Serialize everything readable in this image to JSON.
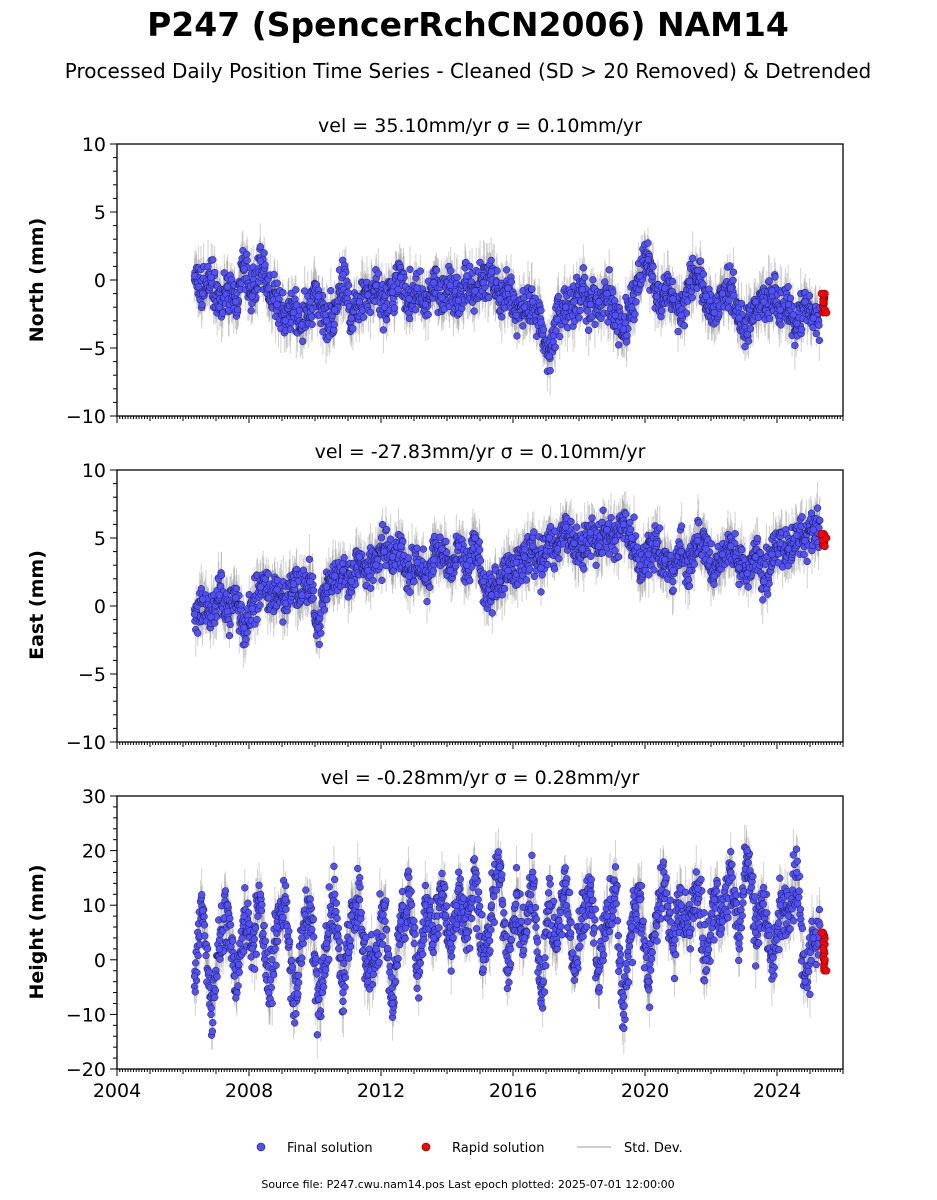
{
  "figure": {
    "title": "P247 (SpencerRchCN2006) NAM14",
    "subtitle": "Processed Daily Position Time Series - Cleaned (SD > 20 Removed) & Detrended",
    "source": "Source file: P247.cwu.nam14.pos  Last epoch plotted: 2025-07-01 12:00:00"
  },
  "legend": {
    "final": "Final solution",
    "rapid": "Rapid solution",
    "std": "Std. Dev."
  },
  "colors": {
    "final_fill": "#5050ff",
    "final_edge": "#1a1a3a",
    "rapid_fill": "#ff0000",
    "rapid_edge": "#600000",
    "errorbar": "#7a7a7a"
  },
  "chart_data": [
    {
      "type": "scatter",
      "title_text": "vel = 35.10mm/yr   σ = 0.10mm/yr",
      "ylabel": "North (mm)",
      "xlim": [
        2004,
        2026
      ],
      "ylim": [
        -10,
        10
      ],
      "yticks": [
        -10,
        -5,
        0,
        5,
        10
      ],
      "yticklabels": [
        "−10",
        "−5",
        "0",
        "5",
        "10"
      ],
      "grid": false,
      "series": [
        {
          "name": "Final solution",
          "x": [
            2006.35,
            2006.6,
            2006.85,
            2007.1,
            2007.35,
            2007.6,
            2007.85,
            2008.1,
            2008.35,
            2008.6,
            2008.85,
            2009.1,
            2009.35,
            2009.6,
            2009.85,
            2010.1,
            2010.35,
            2010.6,
            2010.85,
            2011.1,
            2011.35,
            2011.6,
            2011.85,
            2012.1,
            2012.35,
            2012.6,
            2012.85,
            2013.1,
            2013.35,
            2013.6,
            2013.85,
            2014.1,
            2014.35,
            2014.6,
            2014.85,
            2015.1,
            2015.35,
            2015.6,
            2015.85,
            2016.1,
            2016.35,
            2016.6,
            2016.85,
            2017.1,
            2017.35,
            2017.6,
            2017.85,
            2018.1,
            2018.35,
            2018.6,
            2018.85,
            2019.1,
            2019.35,
            2019.6,
            2019.85,
            2020.1,
            2020.35,
            2020.6,
            2020.85,
            2021.1,
            2021.35,
            2021.6,
            2021.85,
            2022.1,
            2022.35,
            2022.6,
            2022.85,
            2023.1,
            2023.35,
            2023.6,
            2023.85,
            2024.1,
            2024.35,
            2024.6,
            2024.85,
            2025.1
          ],
          "y": [
            0.3,
            -1.0,
            0.2,
            -2.0,
            -0.5,
            -1.6,
            0.8,
            -1.2,
            1.4,
            -0.6,
            -1.8,
            -3.0,
            -2.4,
            -3.3,
            -1.6,
            -1.2,
            -3.0,
            -2.2,
            0.4,
            -2.8,
            -1.6,
            -1.1,
            -0.4,
            -2.0,
            -0.9,
            0.2,
            -1.4,
            -0.6,
            -1.8,
            -0.2,
            -1.3,
            -0.4,
            -1.5,
            0.3,
            -0.8,
            -0.2,
            0.6,
            -1.4,
            -0.6,
            -2.6,
            -2.0,
            -1.6,
            -3.1,
            -5.6,
            -2.9,
            -2.0,
            -1.6,
            -0.7,
            -1.8,
            -1.6,
            -1.0,
            -2.6,
            -3.6,
            -2.0,
            0.3,
            1.5,
            -1.2,
            -0.6,
            -1.4,
            -2.6,
            -0.1,
            0.7,
            -1.2,
            -2.4,
            -1.0,
            -0.6,
            -2.8,
            -4.0,
            -1.6,
            -1.6,
            -0.8,
            -2.2,
            -1.8,
            -3.2,
            -1.6,
            -2.8
          ]
        },
        {
          "name": "Rapid solution",
          "x": [
            2025.35,
            2025.4,
            2025.45,
            2025.5
          ],
          "y": [
            -1.0,
            -1.6,
            -2.2,
            -2.4
          ]
        }
      ]
    },
    {
      "type": "scatter",
      "title_text": "vel = -27.83mm/yr   σ = 0.10mm/yr",
      "ylabel": "East (mm)",
      "xlim": [
        2004,
        2026
      ],
      "ylim": [
        -10,
        10
      ],
      "yticks": [
        -10,
        -5,
        0,
        5,
        10
      ],
      "yticklabels": [
        "−10",
        "−5",
        "0",
        "5",
        "10"
      ],
      "grid": false,
      "series": [
        {
          "name": "Final solution",
          "x": [
            2006.35,
            2006.6,
            2006.85,
            2007.1,
            2007.35,
            2007.6,
            2007.85,
            2008.1,
            2008.35,
            2008.6,
            2008.85,
            2009.1,
            2009.35,
            2009.6,
            2009.85,
            2010.1,
            2010.35,
            2010.6,
            2010.85,
            2011.1,
            2011.35,
            2011.6,
            2011.85,
            2012.1,
            2012.35,
            2012.6,
            2012.85,
            2013.1,
            2013.35,
            2013.6,
            2013.85,
            2014.1,
            2014.35,
            2014.6,
            2014.85,
            2015.1,
            2015.35,
            2015.6,
            2015.85,
            2016.1,
            2016.35,
            2016.6,
            2016.85,
            2017.1,
            2017.35,
            2017.6,
            2017.85,
            2018.1,
            2018.35,
            2018.6,
            2018.85,
            2019.1,
            2019.35,
            2019.6,
            2019.85,
            2020.1,
            2020.35,
            2020.6,
            2020.85,
            2021.1,
            2021.35,
            2021.6,
            2021.85,
            2022.1,
            2022.35,
            2022.6,
            2022.85,
            2023.1,
            2023.35,
            2023.6,
            2023.85,
            2024.1,
            2024.35,
            2024.6,
            2024.85,
            2025.1
          ],
          "y": [
            -0.6,
            0.5,
            -0.8,
            0.8,
            -0.4,
            0.6,
            -1.6,
            -0.2,
            1.4,
            0.6,
            1.2,
            0.2,
            1.6,
            0.8,
            1.8,
            -1.6,
            1.4,
            2.2,
            2.6,
            1.8,
            3.6,
            2.6,
            3.0,
            4.0,
            3.6,
            4.4,
            2.2,
            3.2,
            2.0,
            3.4,
            4.2,
            2.6,
            4.4,
            3.0,
            5.0,
            1.8,
            0.8,
            1.8,
            2.6,
            3.2,
            3.6,
            4.4,
            2.8,
            5.0,
            4.2,
            5.8,
            4.6,
            4.2,
            5.4,
            4.4,
            5.6,
            4.8,
            6.0,
            5.0,
            3.0,
            3.8,
            4.6,
            3.4,
            2.6,
            4.0,
            2.6,
            4.8,
            4.2,
            2.2,
            3.8,
            4.4,
            2.8,
            2.4,
            3.6,
            1.8,
            3.8,
            4.6,
            4.2,
            5.2,
            4.8,
            5.6
          ]
        },
        {
          "name": "Rapid solution",
          "x": [
            2025.35,
            2025.4,
            2025.45,
            2025.5
          ],
          "y": [
            5.3,
            4.8,
            4.4,
            5.0
          ]
        }
      ]
    },
    {
      "type": "scatter",
      "title_text": "vel = -0.28mm/yr   σ = 0.28mm/yr",
      "ylabel": "Height (mm)",
      "xlim": [
        2004,
        2026
      ],
      "ylim": [
        -20,
        30
      ],
      "yticks": [
        -20,
        -10,
        0,
        10,
        20,
        30
      ],
      "yticklabels": [
        "−20",
        "−10",
        "0",
        "10",
        "20",
        "30"
      ],
      "xticks": [
        2004,
        2008,
        2012,
        2016,
        2020,
        2024
      ],
      "xticklabels": [
        "2004",
        "2008",
        "2012",
        "2016",
        "2020",
        "2024"
      ],
      "grid": false,
      "series": [
        {
          "name": "Final solution",
          "x": [
            2006.35,
            2006.6,
            2006.85,
            2007.1,
            2007.35,
            2007.6,
            2007.85,
            2008.1,
            2008.35,
            2008.6,
            2008.85,
            2009.1,
            2009.35,
            2009.6,
            2009.85,
            2010.1,
            2010.35,
            2010.6,
            2010.85,
            2011.1,
            2011.35,
            2011.6,
            2011.85,
            2012.1,
            2012.35,
            2012.6,
            2012.85,
            2013.1,
            2013.35,
            2013.6,
            2013.85,
            2014.1,
            2014.35,
            2014.6,
            2014.85,
            2015.1,
            2015.35,
            2015.6,
            2015.85,
            2016.1,
            2016.35,
            2016.6,
            2016.85,
            2017.1,
            2017.35,
            2017.6,
            2017.85,
            2018.1,
            2018.35,
            2018.6,
            2018.85,
            2019.1,
            2019.35,
            2019.6,
            2019.85,
            2020.1,
            2020.35,
            2020.6,
            2020.85,
            2021.1,
            2021.35,
            2021.6,
            2021.85,
            2022.1,
            2022.35,
            2022.6,
            2022.85,
            2023.1,
            2023.35,
            2023.6,
            2023.85,
            2024.1,
            2024.35,
            2024.6,
            2024.85,
            2025.1
          ],
          "y": [
            -3,
            9,
            -10,
            2,
            10,
            -7,
            8,
            2,
            12,
            -6,
            6,
            11,
            -8,
            4,
            10,
            -10,
            3,
            12,
            -6,
            8,
            11,
            -4,
            2,
            10,
            -8,
            7,
            12,
            -3,
            10,
            4,
            12,
            3,
            13,
            5,
            15,
            0,
            10,
            17,
            -2,
            12,
            4,
            15,
            -8,
            10,
            3,
            14,
            -2,
            9,
            12,
            -2,
            8,
            13,
            -10,
            6,
            11,
            -4,
            8,
            14,
            2,
            10,
            5,
            13,
            0,
            11,
            7,
            16,
            3,
            20,
            5,
            12,
            -2,
            10,
            8,
            16,
            -4,
            4
          ]
        },
        {
          "name": "Rapid solution",
          "x": [
            2025.35,
            2025.4,
            2025.45,
            2025.5
          ],
          "y": [
            5,
            2,
            0,
            -2
          ]
        }
      ]
    }
  ]
}
